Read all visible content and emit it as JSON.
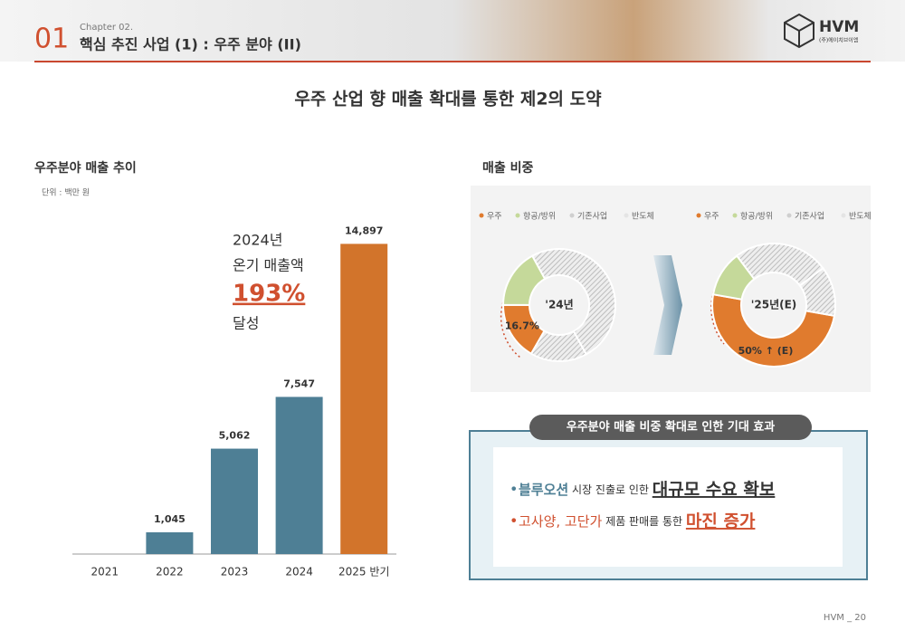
{
  "header": {
    "number": "01",
    "chapter": "Chapter 02.",
    "title": "핵심 추진 사업 (1) : 우주 분야 (II)",
    "logo": "HVM",
    "logo_sub": "(주)에이치브이엠"
  },
  "headline": "우주 산업 향 매출 확대를 통한 제2의 도약",
  "share_title": "매출 비중",
  "chart_data": [
    {
      "type": "bar",
      "title": "우주분야 매출 추이",
      "subtitle": "단위 : 백만 원",
      "categories": [
        "2021",
        "2022",
        "2023",
        "2024",
        "2025 반기"
      ],
      "values": [
        null,
        1045,
        5062,
        7547,
        14897
      ],
      "value_labels": [
        null,
        "1,045",
        "5,062",
        "7,547",
        "14,897"
      ],
      "colors": [
        "#4e7f95",
        "#4e7f95",
        "#4e7f95",
        "#4e7f95",
        "#d2742b"
      ],
      "ylim": [
        0,
        16000
      ],
      "annotation": {
        "lines": [
          "2024년",
          "온기 매출액"
        ],
        "highlight": "193%",
        "end": "달성"
      }
    },
    {
      "type": "pie",
      "center_label": "'24년",
      "categories": [
        "우주",
        "항공/방위",
        "기존사업",
        "반도체"
      ],
      "values": [
        16.7,
        17,
        50,
        16.3
      ],
      "value_labels": [
        "16.7%",
        null,
        null,
        null
      ],
      "colors": [
        "#e07b2e",
        "#c5d99a",
        "#cfcfcf",
        "#e4e4e4"
      ]
    },
    {
      "type": "pie",
      "center_label": "'25년(E)",
      "categories": [
        "우주",
        "항공/방위",
        "기존사업",
        "반도체"
      ],
      "values": [
        50,
        12,
        25,
        13
      ],
      "value_labels": [
        "50% ↑ (E)",
        null,
        null,
        null
      ],
      "colors": [
        "#e07b2e",
        "#c5d99a",
        "#cfcfcf",
        "#e4e4e4"
      ]
    }
  ],
  "effects": {
    "title": "우주분야 매출 비중 확대로 인한 기대 효과",
    "items": [
      [
        "블루오션",
        " 시장 진출로 인한 ",
        "대규모 수요 확보"
      ],
      [
        "고사양, 고단가",
        " 제품 판매를 통한 ",
        "마진 증가"
      ]
    ]
  },
  "footer": "HVM _  20"
}
